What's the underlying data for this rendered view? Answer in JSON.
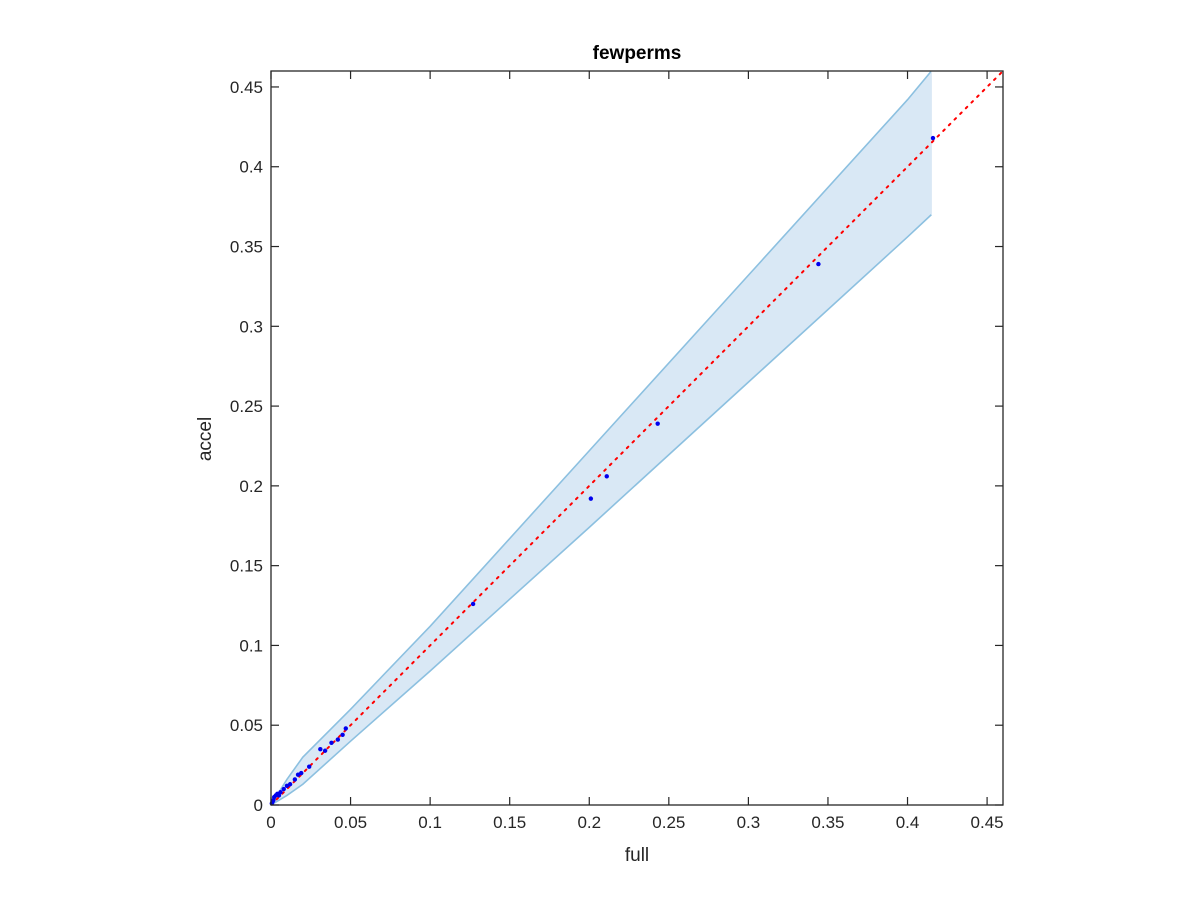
{
  "chart_data": {
    "type": "scatter",
    "title": "fewperms",
    "xlabel": "full",
    "ylabel": "accel",
    "xlim": [
      0,
      0.46
    ],
    "ylim": [
      0,
      0.46
    ],
    "xticks": [
      0,
      0.05,
      0.1,
      0.15,
      0.2,
      0.25,
      0.3,
      0.35,
      0.4,
      0.45
    ],
    "yticks": [
      0,
      0.05,
      0.1,
      0.15,
      0.2,
      0.25,
      0.3,
      0.35,
      0.4,
      0.45
    ],
    "xtick_labels": [
      "0",
      "0.05",
      "0.1",
      "0.15",
      "0.2",
      "0.25",
      "0.3",
      "0.35",
      "0.4",
      "0.45"
    ],
    "ytick_labels": [
      "0",
      "0.05",
      "0.1",
      "0.15",
      "0.2",
      "0.25",
      "0.3",
      "0.35",
      "0.4",
      "0.45"
    ],
    "grid": false,
    "points": {
      "x": [
        0.0005,
        0.001,
        0.0015,
        0.002,
        0.003,
        0.004,
        0.005,
        0.006,
        0.008,
        0.01,
        0.012,
        0.015,
        0.017,
        0.019,
        0.024,
        0.031,
        0.034,
        0.038,
        0.042,
        0.045,
        0.047,
        0.127,
        0.201,
        0.211,
        0.243,
        0.344,
        0.416
      ],
      "y": [
        0.001,
        0.002,
        0.003,
        0.005,
        0.006,
        0.007,
        0.006,
        0.008,
        0.01,
        0.012,
        0.013,
        0.016,
        0.019,
        0.02,
        0.024,
        0.035,
        0.034,
        0.039,
        0.041,
        0.044,
        0.048,
        0.126,
        0.192,
        0.206,
        0.239,
        0.339,
        0.418
      ]
    },
    "reference_line": {
      "x": [
        0,
        0.46
      ],
      "y": [
        0,
        0.46
      ]
    },
    "band": {
      "x": [
        0,
        0.01,
        0.02,
        0.05,
        0.1,
        0.2,
        0.3,
        0.4,
        0.415
      ],
      "upper": [
        0,
        0.016,
        0.03,
        0.06,
        0.112,
        0.222,
        0.332,
        0.442,
        0.46
      ],
      "lower": [
        0,
        0.006,
        0.013,
        0.04,
        0.084,
        0.174,
        0.265,
        0.356,
        0.37
      ]
    },
    "colors": {
      "points": "#0000ee",
      "reference_line": "#ff0000",
      "band_fill": "#d9e8f5",
      "band_edge": "#8cc0e0",
      "axes": "#262626"
    }
  }
}
